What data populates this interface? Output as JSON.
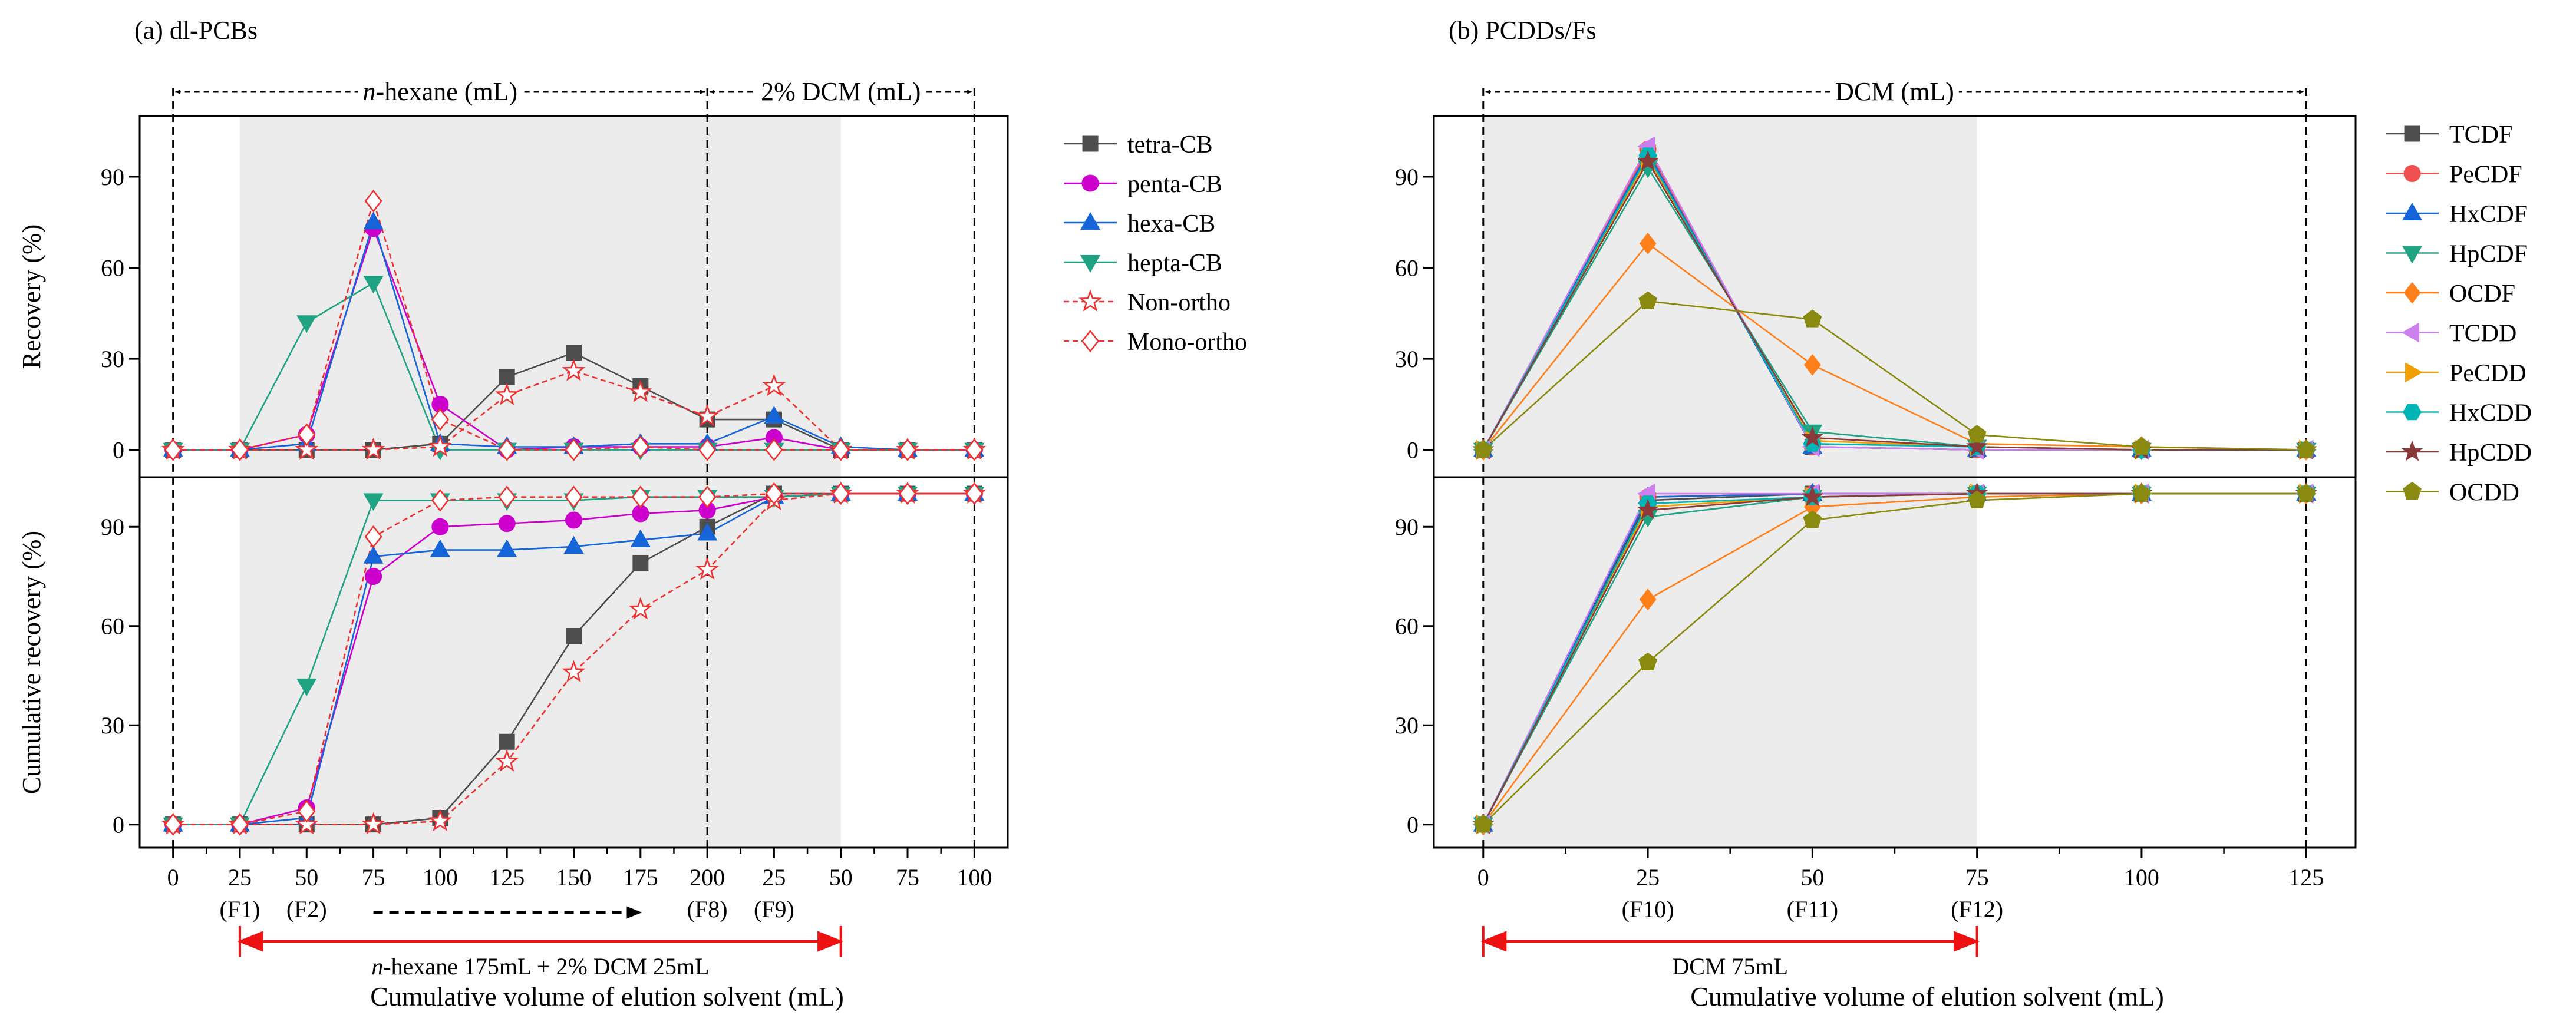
{
  "figure": {
    "panel_a_title": "(a) dl-PCBs",
    "panel_b_title": "(b) PCDDs/Fs"
  },
  "chart_data": [
    {
      "id": "a",
      "type": "line",
      "title": "(a) dl-PCBs",
      "xlabel": "Cumulative volume of elution solvent (mL)",
      "ylabel_top": "Recovery (%)",
      "ylabel_bottom": "Cumulative recovery (%)",
      "x_tick_labels": [
        "0",
        "25",
        "50",
        "75",
        "100",
        "125",
        "150",
        "175",
        "200",
        "25",
        "50",
        "75",
        "100"
      ],
      "x_fraction_labels": [
        {
          "idx": 1,
          "text": "(F1)"
        },
        {
          "idx": 2,
          "text": "(F2)"
        },
        {
          "idx": 8,
          "text": "(F8)"
        },
        {
          "idx": 9,
          "text": "(F9)"
        }
      ],
      "y_ticks": [
        0,
        30,
        60,
        90
      ],
      "ylim_top": [
        -9,
        110
      ],
      "ylim_bottom": [
        -7,
        105
      ],
      "shade_range": [
        1,
        10
      ],
      "vlines": [
        0,
        8,
        12
      ],
      "solvent_segments": [
        {
          "from": 0,
          "to": 8,
          "label_em": "n",
          "label_rest": "-hexane (mL)"
        },
        {
          "from": 8,
          "to": 12,
          "label_em": "",
          "label_rest": "2% DCM (mL)"
        }
      ],
      "bottom_bracket": {
        "from": 1,
        "to": 10,
        "label_em": "n",
        "label_rest": "-hexane 175mL + 2% DCM 25mL"
      },
      "dotted_arrow": {
        "from": 3,
        "to": 7
      },
      "series": [
        {
          "name": "tetra-CB",
          "color": "#4d4d4d",
          "marker": "square",
          "filled": true,
          "dash": false,
          "top": [
            0,
            0,
            0,
            0,
            2,
            24,
            32,
            21,
            10,
            10,
            0,
            0,
            0
          ],
          "bottom": [
            0,
            0,
            0,
            0,
            2,
            25,
            57,
            79,
            90,
            100,
            100,
            100,
            100
          ]
        },
        {
          "name": "penta-CB",
          "color": "#cc00cc",
          "marker": "circle",
          "filled": true,
          "dash": false,
          "top": [
            0,
            0,
            5,
            73,
            15,
            0,
            1,
            1,
            1,
            4,
            0,
            0,
            0
          ],
          "bottom": [
            0,
            0,
            5,
            75,
            90,
            91,
            92,
            94,
            95,
            99,
            100,
            100,
            100
          ]
        },
        {
          "name": "hexa-CB",
          "color": "#1565d8",
          "marker": "triangle-up",
          "filled": true,
          "dash": false,
          "top": [
            0,
            0,
            2,
            75,
            2,
            1,
            1,
            2,
            2,
            11,
            1,
            0,
            0
          ],
          "bottom": [
            0,
            0,
            2,
            81,
            83,
            83,
            84,
            86,
            88,
            99,
            100,
            100,
            100
          ]
        },
        {
          "name": "hepta-CB",
          "color": "#1fa383",
          "marker": "triangle-down",
          "filled": true,
          "dash": false,
          "top": [
            0,
            0,
            42,
            55,
            0,
            0,
            0,
            0,
            0,
            0,
            0,
            0,
            0
          ],
          "bottom": [
            0,
            0,
            42,
            98,
            98,
            98,
            98,
            99,
            99,
            99,
            100,
            100,
            100
          ]
        },
        {
          "name": "Non-ortho",
          "color": "#ee3030",
          "marker": "star",
          "filled": false,
          "dash": true,
          "top": [
            0,
            0,
            0,
            0,
            1,
            18,
            26,
            19,
            11,
            21,
            0,
            0,
            0
          ],
          "bottom": [
            0,
            0,
            0,
            0,
            1,
            19,
            46,
            65,
            77,
            98,
            100,
            100,
            100
          ]
        },
        {
          "name": "Mono-ortho",
          "color": "#ee3030",
          "marker": "diamond",
          "filled": false,
          "dash": true,
          "top": [
            0,
            0,
            5,
            82,
            10,
            0,
            0,
            1,
            0,
            0,
            0,
            0,
            0
          ],
          "bottom": [
            0,
            0,
            4,
            87,
            98,
            99,
            99,
            99,
            99,
            100,
            100,
            100,
            100
          ]
        }
      ]
    },
    {
      "id": "b",
      "type": "line",
      "title": "(b) PCDDs/Fs",
      "xlabel": "Cumulative volume of elution solvent (mL)",
      "x_tick_labels": [
        "0",
        "25",
        "50",
        "75",
        "100",
        "125"
      ],
      "x_fraction_labels": [
        {
          "idx": 1,
          "text": "(F10)"
        },
        {
          "idx": 2,
          "text": "(F11)"
        },
        {
          "idx": 3,
          "text": "(F12)"
        }
      ],
      "y_ticks": [
        0,
        30,
        60,
        90
      ],
      "ylim_top": [
        -9,
        110
      ],
      "ylim_bottom": [
        -7,
        105
      ],
      "shade_range": [
        0,
        3
      ],
      "vlines": [
        0,
        5
      ],
      "solvent_segments": [
        {
          "from": 0,
          "to": 5,
          "label_em": "",
          "label_rest": "DCM (mL)"
        }
      ],
      "bottom_bracket": {
        "from": 0,
        "to": 3,
        "label_em": "",
        "label_rest": "DCM  75mL"
      },
      "series": [
        {
          "name": "TCDF",
          "color": "#4d4d4d",
          "marker": "square",
          "filled": true,
          "dash": false,
          "top": [
            0,
            98,
            1,
            0,
            0,
            0
          ],
          "bottom": [
            0,
            98,
            100,
            100,
            100,
            100
          ]
        },
        {
          "name": "PeCDF",
          "color": "#f05050",
          "marker": "circle",
          "filled": true,
          "dash": false,
          "top": [
            0,
            99,
            1,
            0,
            0,
            0
          ],
          "bottom": [
            0,
            99,
            100,
            100,
            100,
            100
          ]
        },
        {
          "name": "HxCDF",
          "color": "#1565d8",
          "marker": "triangle-up",
          "filled": true,
          "dash": false,
          "top": [
            0,
            98,
            1,
            0,
            0,
            0
          ],
          "bottom": [
            0,
            99,
            100,
            100,
            100,
            100
          ]
        },
        {
          "name": "HpCDF",
          "color": "#1fa383",
          "marker": "triangle-down",
          "filled": true,
          "dash": false,
          "top": [
            0,
            93,
            6,
            1,
            0,
            0
          ],
          "bottom": [
            0,
            93,
            99,
            100,
            100,
            100
          ]
        },
        {
          "name": "OCDF",
          "color": "#ff7f1a",
          "marker": "diamond",
          "filled": true,
          "dash": false,
          "top": [
            0,
            68,
            28,
            2,
            1,
            0
          ],
          "bottom": [
            0,
            68,
            96,
            99,
            100,
            100
          ]
        },
        {
          "name": "TCDD",
          "color": "#cc80ee",
          "marker": "triangle-left",
          "filled": true,
          "dash": false,
          "top": [
            0,
            100,
            1,
            0,
            0,
            0
          ],
          "bottom": [
            0,
            100,
            100,
            100,
            100,
            100
          ]
        },
        {
          "name": "PeCDD",
          "color": "#f0a000",
          "marker": "triangle-right",
          "filled": true,
          "dash": false,
          "top": [
            0,
            96,
            3,
            1,
            0,
            0
          ],
          "bottom": [
            0,
            96,
            99,
            100,
            100,
            100
          ]
        },
        {
          "name": "HxCDD",
          "color": "#00b5b5",
          "marker": "hexagon",
          "filled": true,
          "dash": false,
          "top": [
            0,
            97,
            2,
            1,
            0,
            0
          ],
          "bottom": [
            0,
            97,
            99,
            100,
            100,
            100
          ]
        },
        {
          "name": "HpCDD",
          "color": "#8b3a3a",
          "marker": "star",
          "filled": true,
          "dash": false,
          "top": [
            0,
            95,
            4,
            1,
            0,
            0
          ],
          "bottom": [
            0,
            95,
            99,
            100,
            100,
            100
          ]
        },
        {
          "name": "OCDD",
          "color": "#8a8a10",
          "marker": "pentagon",
          "filled": true,
          "dash": false,
          "top": [
            0,
            49,
            43,
            5,
            1,
            0
          ],
          "bottom": [
            0,
            49,
            92,
            98,
            100,
            100
          ]
        }
      ]
    }
  ]
}
